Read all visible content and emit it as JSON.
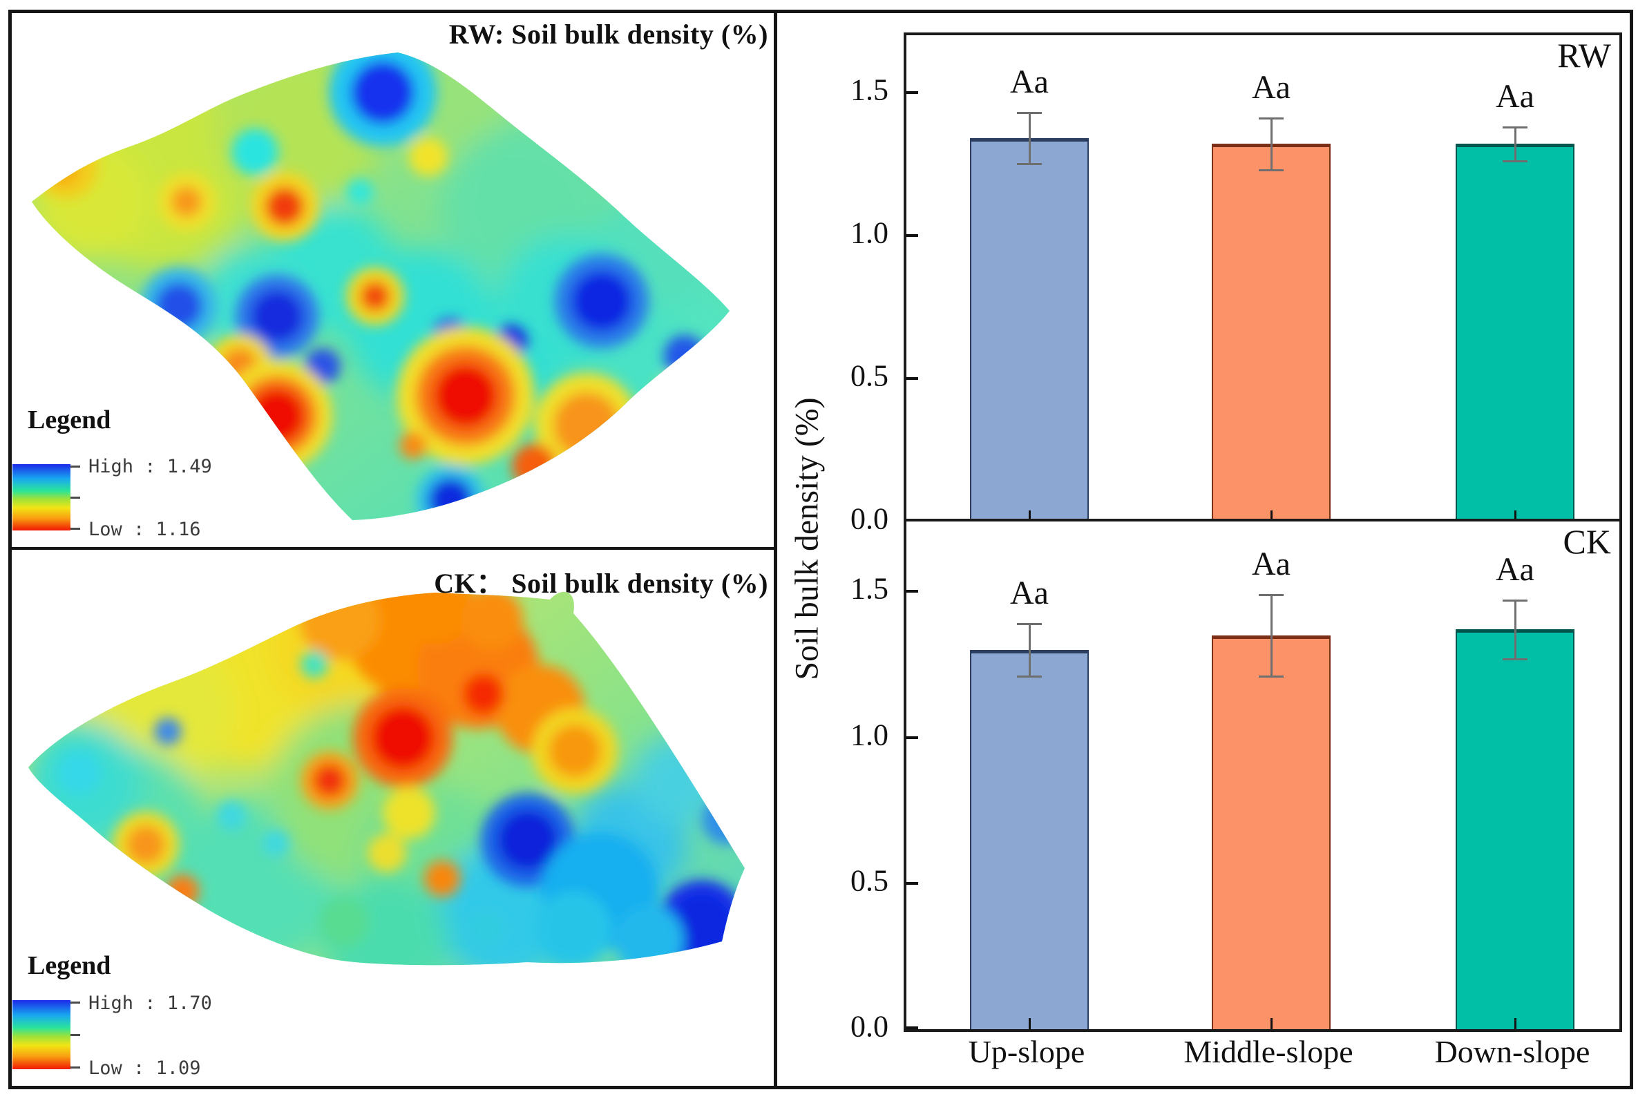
{
  "figure": {
    "maps": [
      {
        "id": "rw-map",
        "title": "RW: Soil bulk density (%)",
        "legend": {
          "heading": "Legend",
          "high_label": "High : 1.49",
          "low_label": "Low : 1.16",
          "high_value": 1.49,
          "low_value": 1.16
        },
        "colormap": "blue-cyan-green-yellow-orange-red (high=blue, low=red)"
      },
      {
        "id": "ck-map",
        "title": "CK：  Soil bulk density (%)",
        "legend": {
          "heading": "Legend",
          "high_label": "High : 1.70",
          "low_label": "Low : 1.09",
          "high_value": 1.7,
          "low_value": 1.09
        },
        "colormap": "blue-cyan-green-yellow-orange-red (high=blue, low=red)"
      }
    ]
  },
  "chart_data": [
    {
      "type": "bar",
      "panel_label": "RW",
      "categories": [
        "Up-slope",
        "Middle-slope",
        "Down-slope"
      ],
      "values": [
        1.34,
        1.32,
        1.32
      ],
      "errors": [
        0.09,
        0.09,
        0.06
      ],
      "sig_labels": [
        "Aa",
        "Aa",
        "Aa"
      ],
      "ylabel": "Soil bulk density (%)",
      "xlabel": "",
      "ylim": [
        0,
        1.7
      ],
      "yticks": [
        0.0,
        0.5,
        1.0,
        1.5
      ],
      "grid": false,
      "legend_position": "none",
      "bar_colors": [
        "#8DA7D3",
        "#FB9268",
        "#00BFA6"
      ],
      "bar_edge_colors": [
        "#2C3E5F",
        "#7A2F16",
        "#00564C"
      ],
      "error_bar_color": "#6f6f6f"
    },
    {
      "type": "bar",
      "panel_label": "CK",
      "categories": [
        "Up-slope",
        "Middle-slope",
        "Down-slope"
      ],
      "values": [
        1.3,
        1.35,
        1.37
      ],
      "errors": [
        0.09,
        0.14,
        0.1
      ],
      "sig_labels": [
        "Aa",
        "Aa",
        "Aa"
      ],
      "ylabel": "Soil bulk density (%)",
      "xlabel": "",
      "ylim": [
        0,
        1.7
      ],
      "yticks": [
        0.0,
        0.5,
        1.0,
        1.5
      ],
      "grid": false,
      "legend_position": "none",
      "bar_colors": [
        "#8DA7D3",
        "#FB9268",
        "#00BFA6"
      ],
      "bar_edge_colors": [
        "#2C3E5F",
        "#7A2F16",
        "#00564C"
      ],
      "error_bar_color": "#6f6f6f"
    }
  ]
}
